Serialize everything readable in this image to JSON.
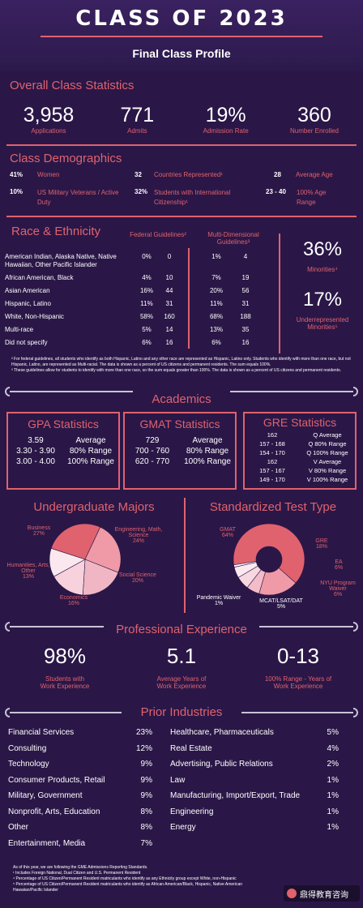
{
  "header": {
    "title": "CLASS OF 2023",
    "subtitle": "Final Class Profile"
  },
  "overall": {
    "title": "Overall Class Statistics",
    "stats": [
      {
        "value": "3,958",
        "label": "Applications"
      },
      {
        "value": "771",
        "label": "Admits"
      },
      {
        "value": "19%",
        "label": "Admission Rate"
      },
      {
        "value": "360",
        "label": "Number Enrolled"
      }
    ]
  },
  "demographics": {
    "title": "Class Demographics",
    "women": {
      "value": "41%",
      "label": "Women"
    },
    "veterans": {
      "value": "10%",
      "label": "US Military Veterans / Active Duty"
    },
    "countries": {
      "value": "32",
      "label": "Countries Represented¹"
    },
    "international": {
      "value": "32%",
      "label": "Students with International Citizenship¹"
    },
    "avg_age": {
      "value": "28",
      "label": "Average Age"
    },
    "age_range": {
      "value": "23 - 40",
      "label": "100% Age Range"
    }
  },
  "race": {
    "title": "Race & Ethnicity",
    "federal_header": "Federal Guidelines²",
    "multi_header": "Multi-Dimensional Guidelines³",
    "rows": [
      {
        "name": "American Indian, Alaska Native, Native Hawaiian, Other Pacific Islander",
        "f_pct": "0%",
        "f_n": "0",
        "m_pct": "1%",
        "m_n": "4"
      },
      {
        "name": "African American, Black",
        "f_pct": "4%",
        "f_n": "10",
        "m_pct": "7%",
        "m_n": "19"
      },
      {
        "name": "Asian American",
        "f_pct": "16%",
        "f_n": "44",
        "m_pct": "20%",
        "m_n": "56"
      },
      {
        "name": "Hispanic, Latino",
        "f_pct": "11%",
        "f_n": "31",
        "m_pct": "11%",
        "m_n": "31"
      },
      {
        "name": "White, Non-Hispanic",
        "f_pct": "58%",
        "f_n": "160",
        "m_pct": "68%",
        "m_n": "188"
      },
      {
        "name": "Multi-race",
        "f_pct": "5%",
        "f_n": "14",
        "m_pct": "13%",
        "m_n": "35"
      },
      {
        "name": "Did not specify",
        "f_pct": "6%",
        "f_n": "16",
        "m_pct": "6%",
        "m_n": "16"
      }
    ],
    "minorities": {
      "value": "36%",
      "label": "Minorities⁴"
    },
    "underrep": {
      "value": "17%",
      "label": "Underrepresented Minorities⁵"
    },
    "footnote1": "² For federal guidelines, all students who identify as both Hispanic, Latino and any other race are represented as Hispanic, Latino only. Students who identify with more than one race, but not Hispanic, Latino, are represented as Multi-racial. The data is shown as a percent of US citizens and permanent residents. The sum equals 100%.",
    "footnote2": "³ These guidelines allow for students to identify with more than one race, so the sum equals greater than 100%. The data is shown as a percent of US citizens and permanent residents."
  },
  "academics": {
    "title": "Academics",
    "gpa": {
      "title": "GPA Statistics",
      "rows": [
        [
          "3.59",
          "Average"
        ],
        [
          "3.30 - 3.90",
          "80% Range"
        ],
        [
          "3.00 - 4.00",
          "100% Range"
        ]
      ]
    },
    "gmat": {
      "title": "GMAT Statistics",
      "rows": [
        [
          "729",
          "Average"
        ],
        [
          "700 - 760",
          "80% Range"
        ],
        [
          "620 - 770",
          "100% Range"
        ]
      ]
    },
    "gre": {
      "title": "GRE Statistics",
      "rows": [
        [
          "162",
          "Q Average"
        ],
        [
          "157 - 168",
          "Q 80% Range"
        ],
        [
          "154 - 170",
          "Q 100% Range"
        ],
        [
          "162",
          "V Average"
        ],
        [
          "157 - 167",
          "V 80% Range"
        ],
        [
          "149 - 170",
          "V 100% Range"
        ]
      ]
    }
  },
  "majors": {
    "title": "Undergraduate Majors",
    "labels": {
      "business": [
        "Business",
        "27%"
      ],
      "eng": [
        "Engineering, Math,",
        "Science",
        "24%"
      ],
      "social": [
        "Social Science",
        "20%"
      ],
      "econ": [
        "Economics",
        "16%"
      ],
      "hum": [
        "Humanities, Arts,",
        "Other",
        "13%"
      ]
    }
  },
  "tests": {
    "title": "Standardized Test Type",
    "labels": {
      "gmat": [
        "GMAT",
        "64%"
      ],
      "gre": [
        "GRE",
        "18%"
      ],
      "ea": [
        "EA",
        "6%"
      ],
      "nyu": [
        "NYU Program",
        "Waiver",
        "6%"
      ],
      "mcat": [
        "MCAT/LSAT/DAT",
        "5%"
      ],
      "pandemic": [
        "Pandemic Waiver",
        "1%"
      ]
    }
  },
  "chart_data": [
    {
      "type": "pie",
      "categories": [
        "Business",
        "Engineering, Math, Science",
        "Social Science",
        "Economics",
        "Humanities, Arts, Other"
      ],
      "values": [
        27,
        24,
        20,
        16,
        13
      ],
      "title": "Undergraduate Majors",
      "colors": [
        "#e0626e",
        "#ef9aa6",
        "#f1b6c4",
        "#f7d2dc",
        "#fbe8ee"
      ]
    },
    {
      "type": "pie",
      "categories": [
        "GMAT",
        "GRE",
        "EA",
        "NYU Program Waiver",
        "MCAT/LSAT/DAT",
        "Pandemic Waiver"
      ],
      "values": [
        64,
        18,
        6,
        6,
        5,
        1
      ],
      "title": "Standardized Test Type",
      "colors": [
        "#e0626e",
        "#ef9aa6",
        "#f3bcc8",
        "#f8d8e0",
        "#fbe9ef",
        "#ffffff"
      ]
    }
  ],
  "experience": {
    "title": "Professional Experience",
    "stats": [
      {
        "value": "98%",
        "label1": "Students with",
        "label2": "Work Experience"
      },
      {
        "value": "5.1",
        "label1": "Average Years of",
        "label2": "Work Experience"
      },
      {
        "value": "0-13",
        "label1": "100% Range - Years of",
        "label2": "Work Experience"
      }
    ]
  },
  "industries": {
    "title": "Prior Industries",
    "left": [
      [
        "Financial Services",
        "23%"
      ],
      [
        "Consulting",
        "12%"
      ],
      [
        "Technology",
        "9%"
      ],
      [
        "Consumer Products, Retail",
        "9%"
      ],
      [
        "Military, Government",
        "9%"
      ],
      [
        "Nonprofit, Arts, Education",
        "8%"
      ],
      [
        "Other",
        "8%"
      ],
      [
        "Entertainment, Media",
        "7%"
      ]
    ],
    "right": [
      [
        "Healthcare, Pharmaceuticals",
        "5%"
      ],
      [
        "Real Estate",
        "4%"
      ],
      [
        "Advertising, Public Relations",
        "2%"
      ],
      [
        "Law",
        "1%"
      ],
      [
        "Manufacturing, Import/Export, Trade",
        "1%"
      ],
      [
        "Engineering",
        "1%"
      ],
      [
        "Energy",
        "1%"
      ]
    ]
  },
  "footer": {
    "lines": [
      "As of this year, we are following the GME Admissions Reporting Standards.",
      "¹ Includes Foreign National, Dual Citizen and U.S. Permanent Resident",
      "⁴ Percentage of US Citizen/Permanent Resident matriculants who identify as any Ethnicity group except White, non-Hispanic",
      "⁵ Percentage of US Citizen/Permanent Resident matriculants who identify as African American/Black, Hispanic, Native American",
      "Hawaiian/Pacific Islander"
    ],
    "watermark": "鼎得教育咨询"
  }
}
